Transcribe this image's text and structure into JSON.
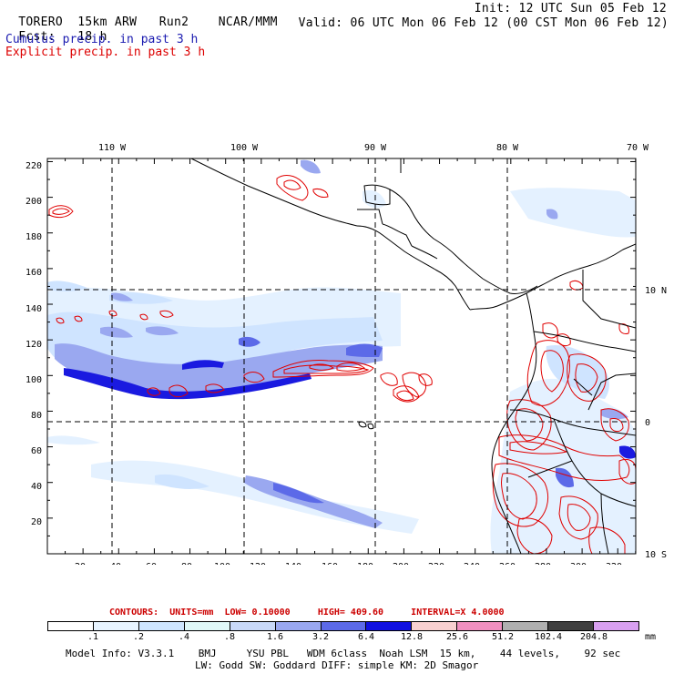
{
  "header": {
    "model": "TORERO",
    "resolution": "15km ARW",
    "run": "Run2",
    "source": "NCAR/MMM",
    "init": "Init: 12 UTC Sun 05 Feb 12",
    "fcst_label": "Fcst:",
    "fcst_value": "18 h",
    "valid": "Valid: 06 UTC Mon 06 Feb 12 (00 CST Mon 06 Feb 12)",
    "cumulus": "Cumulus precip. in past 3 h",
    "explicit": "Explicit precip. in past 3 h"
  },
  "axes": {
    "top_lon": [
      "110 W",
      "100 W",
      "90 W",
      "80 W",
      "70 W"
    ],
    "right_lat": [
      "10 N",
      "0",
      "10 S"
    ],
    "left_ticks": [
      "220",
      "200",
      "180",
      "160",
      "140",
      "120",
      "100",
      "80",
      "60",
      "40",
      "20"
    ],
    "bottom_ticks": [
      "20",
      "40",
      "60",
      "80",
      "100",
      "120",
      "140",
      "160",
      "180",
      "200",
      "220",
      "240",
      "260",
      "280",
      "300",
      "320"
    ]
  },
  "contours": {
    "label": "CONTOURS:",
    "units": "UNITS=mm",
    "low": "LOW= 0.10000",
    "high": "HIGH= 409.60",
    "interval": "INTERVAL=X 4.0000"
  },
  "colorbar": {
    "labels": [
      ".1",
      ".2",
      ".4",
      ".8",
      "1.6",
      "3.2",
      "6.4",
      "12.8",
      "25.6",
      "51.2",
      "102.4",
      "204.8",
      "mm"
    ],
    "colors": [
      "#ffffff",
      "#e8f4ff",
      "#cfe6ff",
      "#e0f8f8",
      "#c8d8f8",
      "#9aa8f0",
      "#5c6ae8",
      "#1010e0",
      "#f8d0d0",
      "#f090c0",
      "#b0b0b0",
      "#404040",
      "#d8a0f0"
    ]
  },
  "footer": {
    "line1": "Model Info: V3.3.1    BMJ     YSU PBL   WDM 6class  Noah LSM  15 km,    44 levels,    92 sec",
    "line2": "LW: Godd SW: Goddard DIFF: simple KM: 2D Smagor"
  }
}
